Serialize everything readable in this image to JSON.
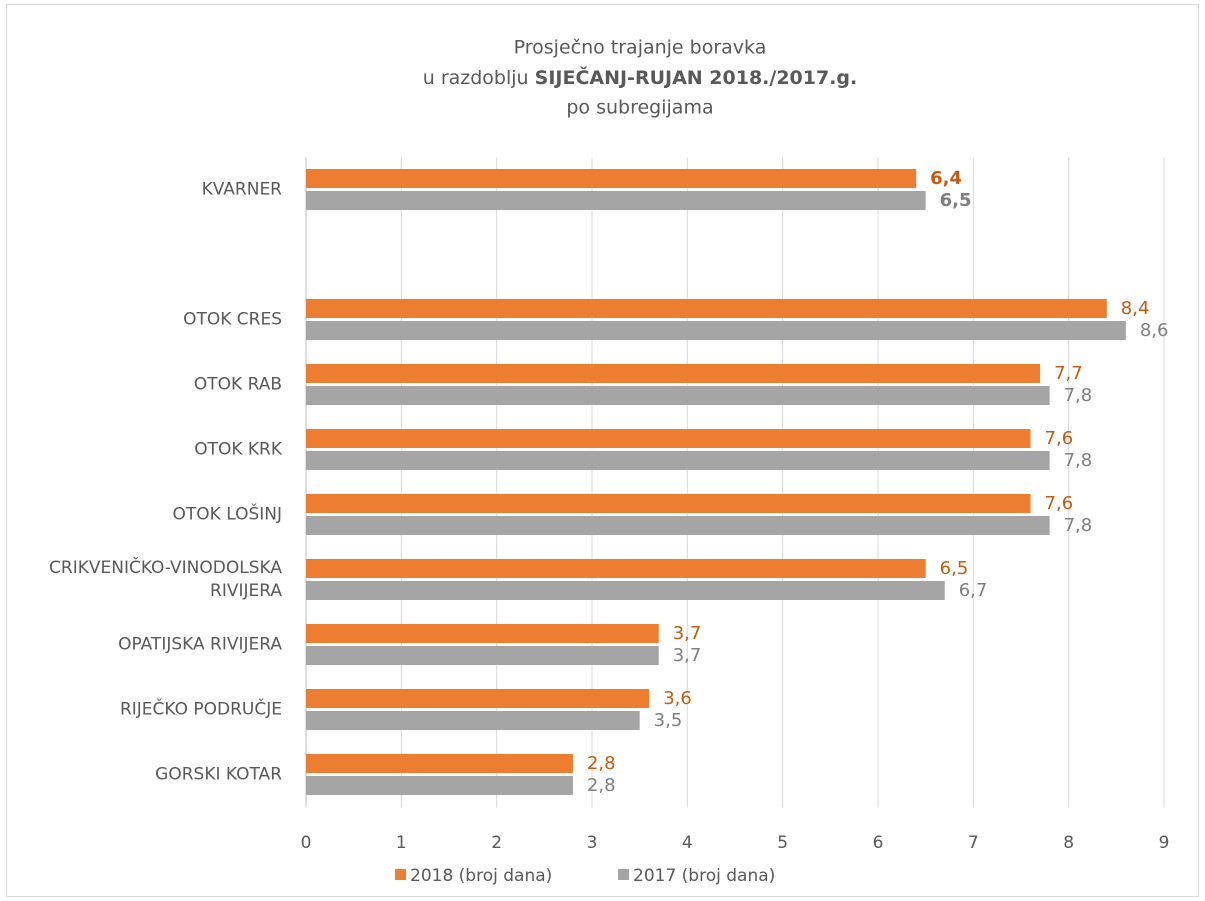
{
  "chart_data": {
    "type": "barh",
    "title": [
      "Prosječno trajanje boravka",
      "u razdoblju",
      "SIJEČANJ-RUJAN 2018./2017.g.",
      "po subregijama"
    ],
    "categories": [
      "KVARNER",
      null,
      "OTOK CRES",
      "OTOK RAB",
      "OTOK KRK",
      "OTOK LOŠINJ",
      "CRIKVENIČKO-VINODOLSKA RIVIJERA",
      "OPATIJSKA RIVIJERA",
      "RIJEČKO PODRUČJE",
      "GORSKI KOTAR"
    ],
    "series": [
      {
        "name": "2018 (broj dana)",
        "color": "#ed7d31",
        "label_color": "#c55a11",
        "values": [
          6.4,
          null,
          8.4,
          7.7,
          7.6,
          7.6,
          6.5,
          3.7,
          3.6,
          2.8
        ],
        "value_labels": [
          "6,4",
          null,
          "8,4",
          "7,7",
          "7,6",
          "7,6",
          "6,5",
          "3,7",
          "3,6",
          "2,8"
        ]
      },
      {
        "name": "2017 (broj dana)",
        "color": "#a5a5a5",
        "label_color": "#7f7f7f",
        "values": [
          6.5,
          null,
          8.6,
          7.8,
          7.8,
          7.8,
          6.7,
          3.7,
          3.5,
          2.8
        ],
        "value_labels": [
          "6,5",
          null,
          "8,6",
          "7,8",
          "7,8",
          "7,8",
          "6,7",
          "3,7",
          "3,5",
          "2,8"
        ]
      }
    ],
    "xlim": [
      0,
      9
    ],
    "xticks": [
      0,
      1,
      2,
      3,
      4,
      5,
      6,
      7,
      8,
      9
    ],
    "grid": true,
    "legend": "bottom"
  }
}
